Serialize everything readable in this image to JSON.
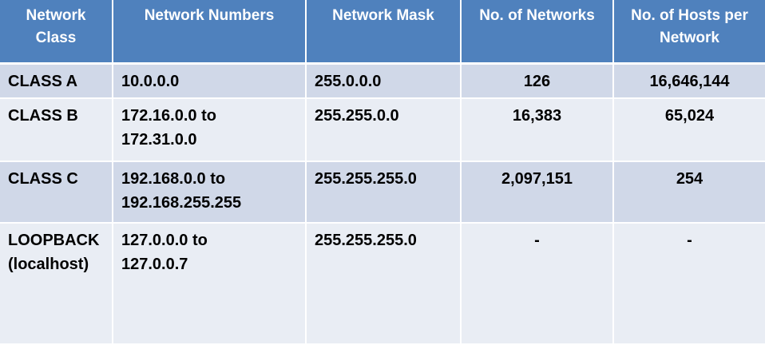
{
  "table": {
    "headers": [
      "Network Class",
      "Network Numbers",
      "Network Mask",
      "No. of Networks",
      "No. of Hosts per Network"
    ],
    "rows": [
      {
        "class_lines": [
          "CLASS A"
        ],
        "numbers_lines": [
          "10.0.0.0"
        ],
        "mask": "255.0.0.0",
        "networks": "126",
        "hosts": "16,646,144"
      },
      {
        "class_lines": [
          "CLASS B"
        ],
        "numbers_lines": [
          "172.16.0.0 to",
          "172.31.0.0"
        ],
        "mask": "255.255.0.0",
        "networks": "16,383",
        "hosts": "65,024"
      },
      {
        "class_lines": [
          "CLASS C"
        ],
        "numbers_lines": [
          "192.168.0.0 to",
          "192.168.255.255"
        ],
        "mask": "255.255.255.0",
        "networks": "2,097,151",
        "hosts": "254"
      },
      {
        "class_lines": [
          "LOOPBACK",
          "(localhost)"
        ],
        "numbers_lines": [
          "127.0.0.0 to",
          "127.0.0.7"
        ],
        "mask": "255.255.255.0",
        "networks": "-",
        "hosts": "-"
      }
    ]
  },
  "colors": {
    "header_bg": "#4f81bd",
    "row_dark": "#d0d8e8",
    "row_light": "#e9edf4"
  }
}
